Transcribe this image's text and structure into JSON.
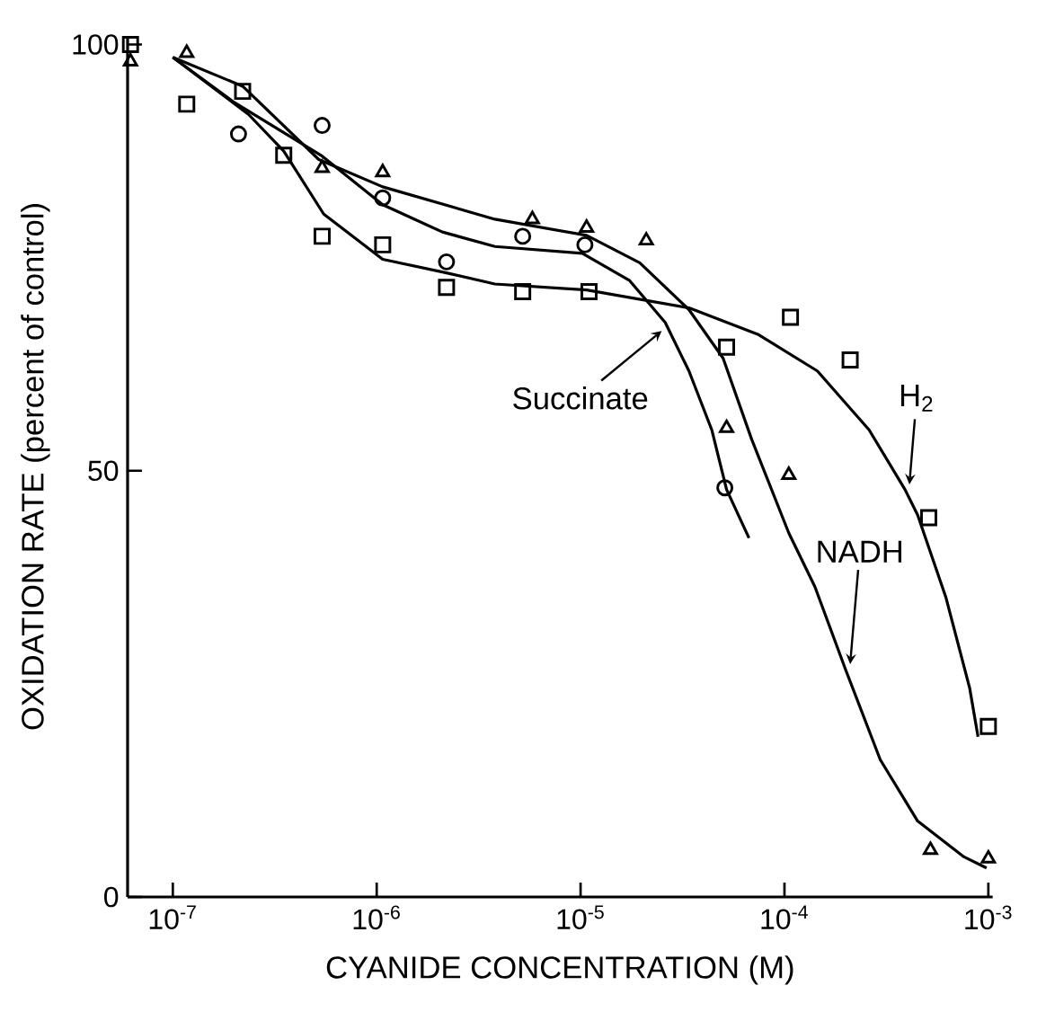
{
  "chart_data": {
    "type": "scatter",
    "log": "x",
    "xlabel": "CYANIDE CONCENTRATION (M)",
    "ylabel": "OXIDATION RATE (percent of control)",
    "xlim": [
      6e-08,
      0.00105
    ],
    "ylim": [
      0,
      101
    ],
    "xticks": [
      {
        "value": 1e-07,
        "label": "10$^{-7}$"
      },
      {
        "value": 1e-06,
        "label": "10$^{-6}$"
      },
      {
        "value": 1e-05,
        "label": "10$^{-5}$"
      },
      {
        "value": 0.0001,
        "label": "10$^{-4}$"
      },
      {
        "value": 0.001,
        "label": "10$^{-3}$"
      }
    ],
    "yticks": [
      0,
      50,
      100
    ],
    "series": [
      {
        "marker": "square",
        "color": "#000000",
        "x": [
          6.2e-08,
          1.17e-07,
          2.2e-07,
          3.5e-07,
          5.4e-07,
          1.07e-06,
          2.2e-06,
          5.2e-06,
          1.1e-05,
          5.2e-05,
          0.000107,
          0.00021,
          0.00051,
          0.001
        ],
        "values": [
          100,
          93,
          94.5,
          87,
          77.5,
          76.5,
          71.5,
          71,
          71,
          64.5,
          68,
          63,
          44.5,
          20
        ]
      },
      {
        "marker": "circle",
        "color": "#000000",
        "x": [
          2.1e-07,
          5.4e-07,
          1.07e-06,
          2.2e-06,
          5.2e-06,
          1.05e-05,
          5.1e-05
        ],
        "values": [
          89.5,
          90.5,
          82,
          74.5,
          77.5,
          76.5,
          48
        ]
      },
      {
        "marker": "triangle",
        "color": "#000000",
        "x": [
          6.2e-08,
          1.17e-07,
          5.4e-07,
          1.07e-06,
          5.8e-06,
          1.07e-05,
          2.1e-05,
          5.2e-05,
          0.000105,
          0.00052,
          0.001
        ],
        "values": [
          98,
          99,
          85.5,
          85,
          79.5,
          78.5,
          77,
          55,
          49.5,
          5.5,
          4.5
        ]
      },
      {
        "type": "line",
        "marker": "none",
        "line_style": "solid",
        "color": "#000000",
        "x": [
          1e-07,
          2.35e-07,
          3.5e-07,
          5.5e-07,
          1.07e-06,
          2.2e-06,
          3.8e-06,
          1.07e-05,
          3.4e-05,
          7.4e-05,
          0.000145,
          0.00026,
          0.00039,
          0.00045,
          0.00062,
          0.00081,
          0.00089
        ],
        "values": [
          98.5,
          91.8,
          87.5,
          80.1,
          74.8,
          73.2,
          71.9,
          71.2,
          69.1,
          66,
          61.7,
          54.8,
          47.8,
          44.8,
          35.1,
          24.5,
          18.8
        ]
      },
      {
        "type": "line",
        "marker": "none",
        "line_style": "solid",
        "color": "#000000",
        "x": [
          1e-07,
          2e-07,
          5.4e-07,
          1.07e-06,
          2.1e-06,
          3.8e-06,
          1.02e-05,
          1.74e-05,
          2.6e-05,
          3.4e-05,
          4.4e-05,
          5.2e-05,
          6.7e-05
        ],
        "values": [
          98.5,
          93.2,
          86.9,
          81.2,
          78,
          76.3,
          75.5,
          72.3,
          67.4,
          61.7,
          54.8,
          47.8,
          42.1
        ]
      },
      {
        "type": "line",
        "marker": "none",
        "line_style": "solid",
        "color": "#000000",
        "x": [
          1e-07,
          2.2e-07,
          5.2e-07,
          1.07e-06,
          3.8e-06,
          1.07e-05,
          1.95e-05,
          3.4e-05,
          5e-05,
          6.9e-05,
          0.000105,
          0.000141,
          0.0002,
          0.000295,
          0.00045,
          0.00076,
          0.00098
        ],
        "values": [
          98.5,
          95.1,
          86.5,
          83.3,
          79.5,
          77.6,
          74.4,
          68.9,
          63.2,
          53.7,
          42.7,
          36.4,
          26.6,
          16.1,
          8.9,
          4.7,
          3.4
        ]
      }
    ],
    "annotations": [
      {
        "text": "Succinate",
        "x": 2.5e-05,
        "y": 66.4
      },
      {
        "text": "H$_{2}$",
        "x": 0.00041,
        "y": 48.4
      },
      {
        "text": "NADH",
        "x": 0.00021,
        "y": 27.3
      }
    ]
  }
}
